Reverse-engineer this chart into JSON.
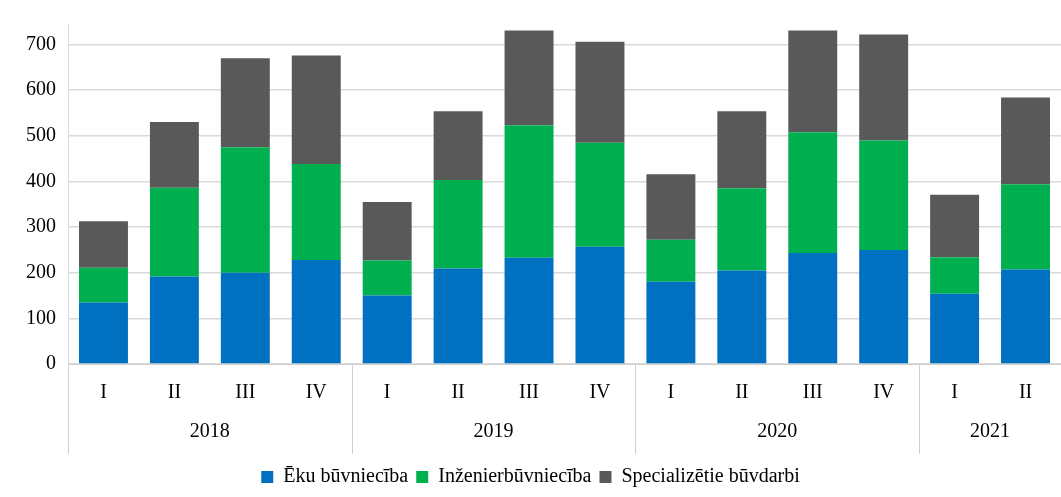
{
  "chart_data": {
    "type": "bar",
    "stacked": true,
    "categories": [
      "I",
      "II",
      "III",
      "IV",
      "I",
      "II",
      "III",
      "IV",
      "I",
      "II",
      "III",
      "IV",
      "I",
      "II"
    ],
    "series": [
      {
        "name": "Ēku būvniecība",
        "color": "#0070c0",
        "values": [
          135,
          192,
          200,
          228,
          150,
          209,
          233,
          257,
          180,
          205,
          243,
          250,
          154,
          207
        ]
      },
      {
        "name": "Inženierbūvniecība",
        "color": "#00b050",
        "values": [
          76,
          194,
          275,
          210,
          77,
          194,
          290,
          228,
          92,
          180,
          265,
          240,
          80,
          187
        ]
      },
      {
        "name": "Specializētie būvdarbi",
        "color": "#595959",
        "values": [
          102,
          144,
          195,
          238,
          128,
          151,
          208,
          221,
          144,
          169,
          223,
          232,
          137,
          190
        ]
      }
    ],
    "ylim": [
      0,
      745
    ],
    "yticks": [
      0,
      100,
      200,
      300,
      400,
      500,
      600,
      700
    ],
    "grid": "y",
    "legend": "bottom",
    "annotations": [
      "2018",
      "2019",
      "2020",
      "2021"
    ]
  }
}
